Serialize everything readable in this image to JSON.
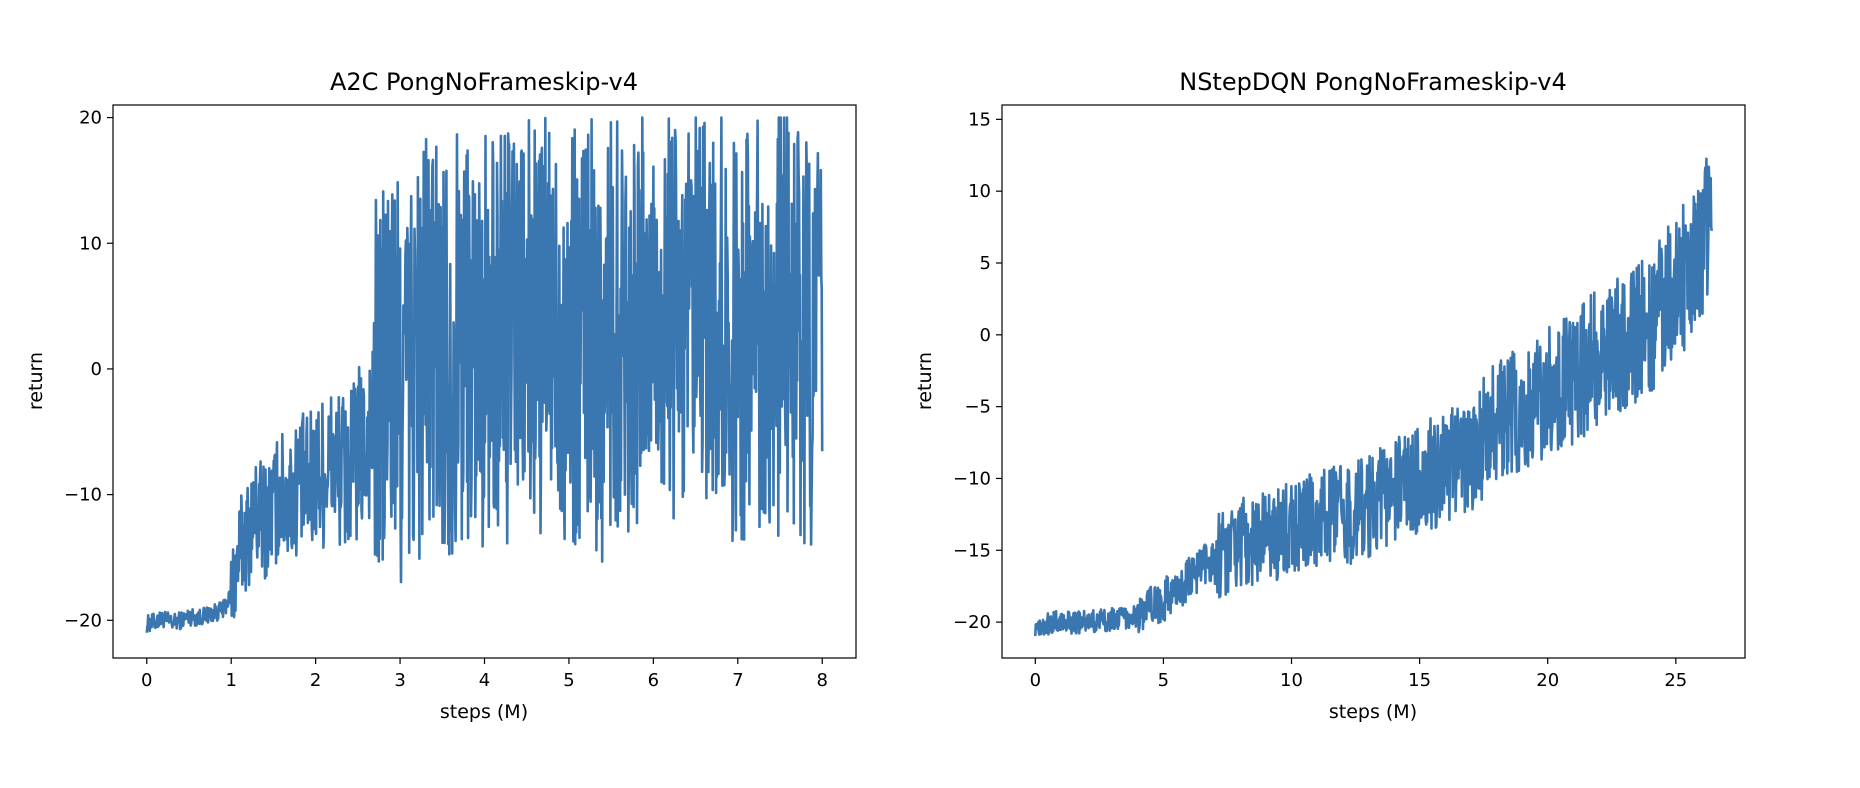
{
  "chart_data": [
    {
      "type": "line",
      "title": "A2C PongNoFrameskip-v4",
      "xlabel": "steps (M)",
      "ylabel": "return",
      "xlim": [
        -0.4,
        8.4
      ],
      "ylim": [
        -23,
        21
      ],
      "xticks": [
        0,
        1,
        2,
        3,
        4,
        5,
        6,
        7,
        8
      ],
      "yticks": [
        -20,
        -10,
        0,
        10,
        20
      ],
      "grid": false,
      "legend": "none",
      "color": "#3a76b0",
      "series": [
        {
          "x": [
            0,
            0.1,
            0.2,
            0.3,
            0.4,
            0.5,
            0.6,
            0.7,
            0.8,
            0.9,
            1.0,
            1.1,
            1.2,
            1.3,
            1.4,
            1.5,
            1.6,
            1.7,
            1.8,
            1.9,
            2.0,
            2.1,
            2.2,
            2.3,
            2.4,
            2.5,
            2.6,
            2.7,
            2.8,
            2.9,
            3.0,
            3.2,
            3.4,
            3.6,
            3.8,
            4.0,
            4.2,
            4.4,
            4.6,
            4.8,
            5.0,
            5.2,
            5.4,
            5.6,
            5.8,
            6.0,
            6.2,
            6.4,
            6.6,
            6.8,
            7.0,
            7.2,
            7.4,
            7.6,
            7.8,
            8.0
          ],
          "y": [
            -20.3,
            -20.1,
            -19.9,
            -20.2,
            -20.0,
            -19.7,
            -19.8,
            -19.6,
            -19.4,
            -19.2,
            -18.0,
            -14.5,
            -13.0,
            -11.5,
            -12.0,
            -11.0,
            -10.0,
            -10.5,
            -9.0,
            -9.5,
            -8.5,
            -8.0,
            -7.5,
            -8.0,
            -8.5,
            -7.0,
            -6.0,
            -3.0,
            -1.0,
            0.5,
            -2.0,
            1.0,
            2.5,
            1.5,
            3.5,
            2.0,
            3.0,
            2.5,
            3.5,
            3.0,
            2.0,
            4.0,
            1.5,
            4.5,
            3.0,
            5.0,
            4.0,
            2.5,
            4.5,
            3.5,
            2.0,
            5.0,
            3.0,
            4.0,
            2.5,
            3.0
          ]
        }
      ]
    },
    {
      "type": "line",
      "title": "NStepDQN PongNoFrameskip-v4",
      "xlabel": "steps (M)",
      "ylabel": "return",
      "xlim": [
        -1.3,
        27.7
      ],
      "ylim": [
        -22.5,
        16
      ],
      "xticks": [
        0,
        5,
        10,
        15,
        20,
        25
      ],
      "yticks": [
        -20,
        -15,
        -10,
        -5,
        0,
        5,
        10,
        15
      ],
      "grid": false,
      "legend": "none",
      "color": "#3a76b0",
      "series": [
        {
          "x": [
            0,
            1,
            2,
            3,
            4,
            5,
            6,
            7,
            8,
            9,
            10,
            11,
            12,
            13,
            14,
            15,
            16,
            17,
            18,
            19,
            20,
            21,
            22,
            23,
            24,
            25,
            26,
            26.4
          ],
          "y": [
            -20.2,
            -20.0,
            -20.0,
            -19.8,
            -19.5,
            -18.5,
            -17.0,
            -15.5,
            -14.5,
            -14.0,
            -13.5,
            -13.0,
            -12.5,
            -12.0,
            -11.0,
            -10.0,
            -9.5,
            -8.5,
            -6.0,
            -5.0,
            -4.0,
            -3.0,
            -1.5,
            -0.5,
            1.0,
            3.0,
            6.0,
            8.0
          ]
        }
      ]
    }
  ]
}
